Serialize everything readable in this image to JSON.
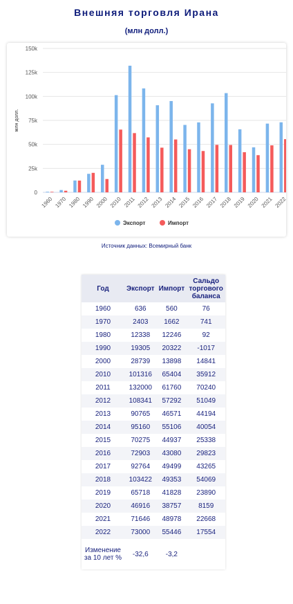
{
  "header": {
    "title": "Внешняя торговля Ирана",
    "subtitle": "(млн долл.)"
  },
  "chart_data": {
    "type": "bar",
    "y_label": "млн долл.",
    "categories": [
      "1960",
      "1970",
      "1980",
      "1990",
      "2000",
      "2010",
      "2011",
      "2012",
      "2013",
      "2014",
      "2015",
      "2016",
      "2017",
      "2018",
      "2019",
      "2020",
      "2021",
      "2022"
    ],
    "series": [
      {
        "name": "Экспорт",
        "color": "#7cb5ec",
        "values": [
          636,
          2403,
          12338,
          19305,
          28739,
          101316,
          132000,
          108341,
          90765,
          95160,
          70275,
          72903,
          92764,
          103422,
          65718,
          46916,
          71646,
          73000
        ]
      },
      {
        "name": "Импорт",
        "color": "#f45b5b",
        "values": [
          560,
          1662,
          12246,
          20322,
          13898,
          65404,
          61760,
          57292,
          46571,
          55106,
          44937,
          43080,
          49499,
          49353,
          41828,
          38757,
          48978,
          55446
        ]
      }
    ],
    "ylim": [
      0,
      150000
    ],
    "yticks": [
      0,
      {
        "value": 25000,
        "label": "25k"
      },
      {
        "value": 50000,
        "label": "50k"
      },
      {
        "value": 75000,
        "label": "75k"
      },
      {
        "value": 100000,
        "label": "100k"
      },
      {
        "value": 125000,
        "label": "125k"
      },
      {
        "value": 150000,
        "label": "150k"
      }
    ],
    "grid": true,
    "legend": "bottom"
  },
  "source": "Источник данных: Всемирный банк",
  "table": {
    "columns": [
      "Год",
      "Экспорт",
      "Импорт",
      "Сальдо торгового баланса"
    ],
    "rows": [
      [
        1960,
        636,
        560,
        76
      ],
      [
        1970,
        2403,
        1662,
        741
      ],
      [
        1980,
        12338,
        12246,
        92
      ],
      [
        1990,
        19305,
        20322,
        -1017
      ],
      [
        2000,
        28739,
        13898,
        14841
      ],
      [
        2010,
        101316,
        65404,
        35912
      ],
      [
        2011,
        132000,
        61760,
        70240
      ],
      [
        2012,
        108341,
        57292,
        51049
      ],
      [
        2013,
        90765,
        46571,
        44194
      ],
      [
        2014,
        95160,
        55106,
        40054
      ],
      [
        2015,
        70275,
        44937,
        25338
      ],
      [
        2016,
        72903,
        43080,
        29823
      ],
      [
        2017,
        92764,
        49499,
        43265
      ],
      [
        2018,
        103422,
        49353,
        54069
      ],
      [
        2019,
        65718,
        41828,
        23890
      ],
      [
        2020,
        46916,
        38757,
        8159
      ],
      [
        2021,
        71646,
        48978,
        22668
      ],
      [
        2022,
        73000,
        55446,
        17554
      ],
      [
        "Изменение за 10 лет %",
        "-32,6",
        "-3,2"
      ]
    ]
  }
}
